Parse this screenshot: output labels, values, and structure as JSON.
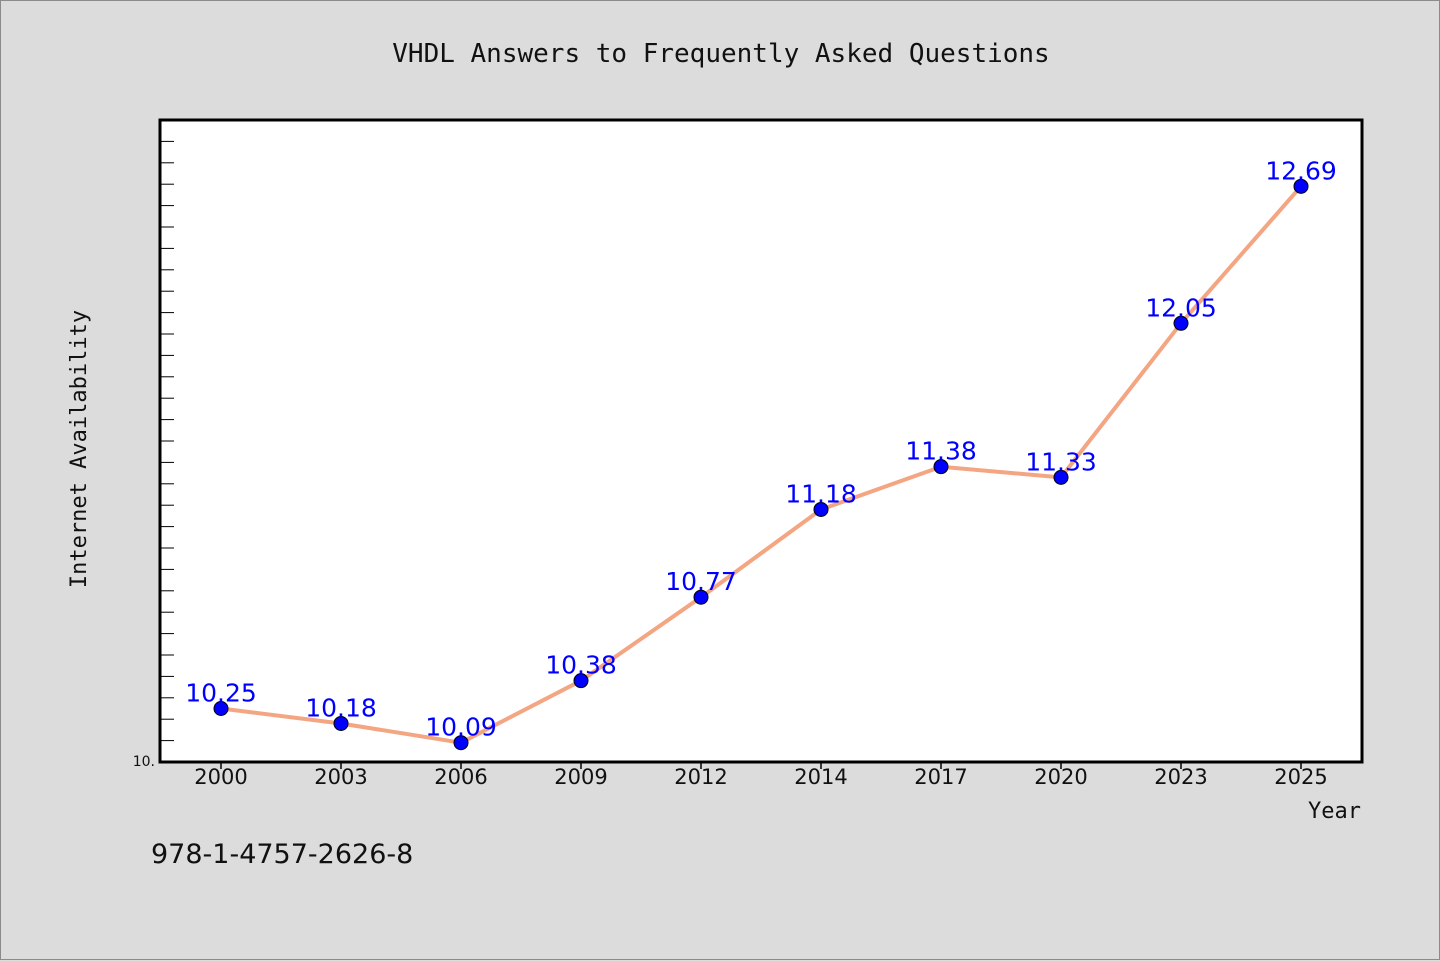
{
  "chart_data": {
    "type": "line",
    "title": "VHDL Answers to Frequently Asked Questions",
    "xlabel": "Year",
    "ylabel": "Internet Availability",
    "categories": [
      "2000",
      "2003",
      "2006",
      "2009",
      "2012",
      "2014",
      "2017",
      "2020",
      "2023",
      "2025"
    ],
    "series": [
      {
        "values": [
          10.25,
          10.18,
          10.09,
          10.38,
          10.77,
          11.18,
          11.38,
          11.33,
          12.05,
          12.69
        ],
        "value_labels": [
          "10.25",
          "10.18",
          "10.09",
          "10.38",
          "10.77",
          "11.18",
          "11.38",
          "11.33",
          "12.05",
          "12.69"
        ],
        "line_color": "#f4a582",
        "marker_color": "#0000ff"
      }
    ],
    "ylim": [
      10.0,
      13.0
    ],
    "y_tick_label": "10.",
    "grid": false,
    "legend": "none"
  },
  "footnote": "978-1-4757-2626-8"
}
